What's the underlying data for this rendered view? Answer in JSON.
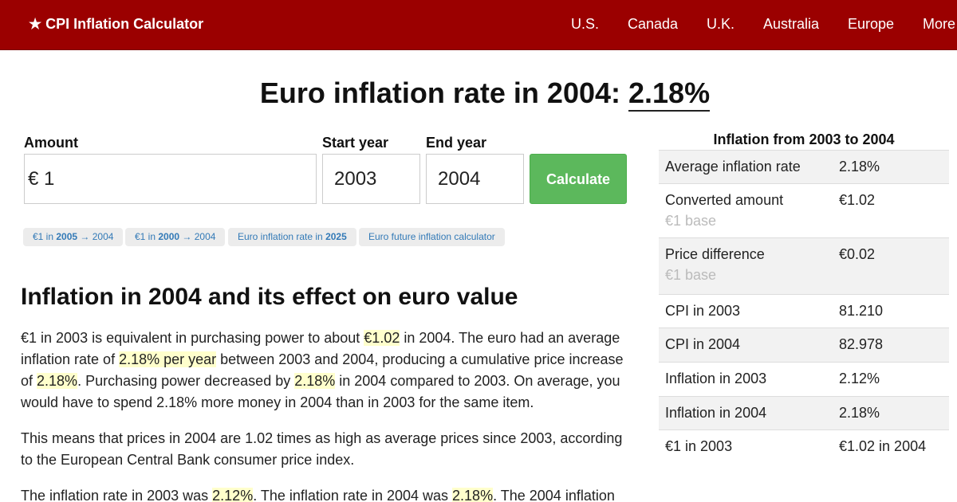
{
  "navbar": {
    "brand": "★ CPI Inflation Calculator",
    "links": [
      "U.S.",
      "Canada",
      "U.K.",
      "Australia",
      "Europe",
      "More"
    ]
  },
  "headline": {
    "prefix": "Euro inflation rate in 2004: ",
    "rate": "2.18%"
  },
  "form": {
    "amount_label": "Amount",
    "amount_value": "€ 1",
    "start_label": "Start year",
    "start_value": "2003",
    "end_label": "End year",
    "end_value": "2004",
    "calculate_label": "Calculate"
  },
  "chips": [
    {
      "pre": "€1 in ",
      "bold": "2005",
      "post": " → 2004"
    },
    {
      "pre": "€1 in ",
      "bold": "2000",
      "post": " → 2004"
    },
    {
      "pre": "Euro inflation rate in ",
      "bold": "2025",
      "post": ""
    },
    {
      "pre": "Euro future inflation calculator",
      "bold": "",
      "post": ""
    }
  ],
  "section": {
    "title": "Inflation in 2004 and its effect on euro value"
  },
  "paragraphs": {
    "p1": [
      {
        "t": "€1 in 2003 is equivalent in purchasing power to about ",
        "h": false
      },
      {
        "t": "€1.02",
        "h": true
      },
      {
        "t": " in 2004. The euro had an average inflation rate of ",
        "h": false
      },
      {
        "t": "2.18% per year",
        "h": true
      },
      {
        "t": " between 2003 and 2004, producing a cumulative price increase of ",
        "h": false
      },
      {
        "t": "2.18%",
        "h": true
      },
      {
        "t": ". Purchasing power decreased by ",
        "h": false
      },
      {
        "t": "2.18%",
        "h": true
      },
      {
        "t": " in 2004 compared to 2003. On average, you would have to spend 2.18% more money in 2004 than in 2003 for the same item.",
        "h": false
      }
    ],
    "p2": [
      {
        "t": "This means that prices in 2004 are 1.02 times as high as average prices since 2003, according to the European Central Bank consumer price index.",
        "h": false
      }
    ],
    "p3": [
      {
        "t": "The inflation rate in 2003 was ",
        "h": false
      },
      {
        "t": "2.12%",
        "h": true
      },
      {
        "t": ". The inflation rate in 2004 was ",
        "h": false
      },
      {
        "t": "2.18%",
        "h": true
      },
      {
        "t": ". The 2004 inflation",
        "h": false
      }
    ]
  },
  "sidebar": {
    "title": "Inflation from 2003 to 2004",
    "rows": [
      {
        "label": "Average inflation rate",
        "sub": "",
        "value": "2.18%"
      },
      {
        "label": "Converted amount",
        "sub": "€1 base",
        "value": "€1.02"
      },
      {
        "label": "Price difference",
        "sub": "€1 base",
        "value": "€0.02"
      },
      {
        "label": "CPI in 2003",
        "sub": "",
        "value": "81.210"
      },
      {
        "label": "CPI in 2004",
        "sub": "",
        "value": "82.978"
      },
      {
        "label": "Inflation in 2003",
        "sub": "",
        "value": "2.12%"
      },
      {
        "label": "Inflation in 2004",
        "sub": "",
        "value": "2.18%"
      },
      {
        "label": "€1 in 2003",
        "sub": "",
        "value": "€1.02 in 2004"
      }
    ]
  },
  "colors": {
    "navbar": "#9b0000",
    "button": "#5cb85c",
    "link": "#337ab7",
    "highlight": "#ffffcc"
  }
}
